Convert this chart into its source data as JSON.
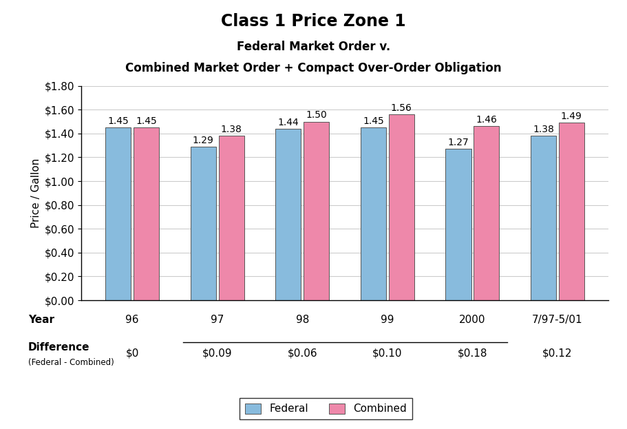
{
  "title": "Class 1 Price Zone 1",
  "subtitle1": "Federal Market Order v.",
  "subtitle2": "Combined Market Order + Compact Over-Order Obligation",
  "categories": [
    "96",
    "97",
    "98",
    "99",
    "2000",
    "7/97-5/01"
  ],
  "federal": [
    1.45,
    1.29,
    1.44,
    1.45,
    1.27,
    1.38
  ],
  "combined": [
    1.45,
    1.38,
    1.5,
    1.56,
    1.46,
    1.49
  ],
  "differences": [
    "$0",
    "$0.09",
    "$0.06",
    "$0.10",
    "$0.18",
    "$0.12"
  ],
  "federal_color": "#88BBDD",
  "combined_color": "#EE88AA",
  "bar_edge_color": "#555555",
  "ylabel": "Price / Gallon",
  "xlabel": "Year",
  "ylim_min": 0.0,
  "ylim_max": 1.8,
  "ytick_step": 0.2,
  "legend_federal": "Federal",
  "legend_combined": "Combined",
  "diff_label": "Difference",
  "diff_sublabel": "(Federal - Combined)",
  "title_fontsize": 17,
  "subtitle_fontsize": 12,
  "axis_label_fontsize": 11,
  "tick_fontsize": 11,
  "bar_label_fontsize": 10,
  "diff_fontsize": 11,
  "background_color": "#ffffff"
}
